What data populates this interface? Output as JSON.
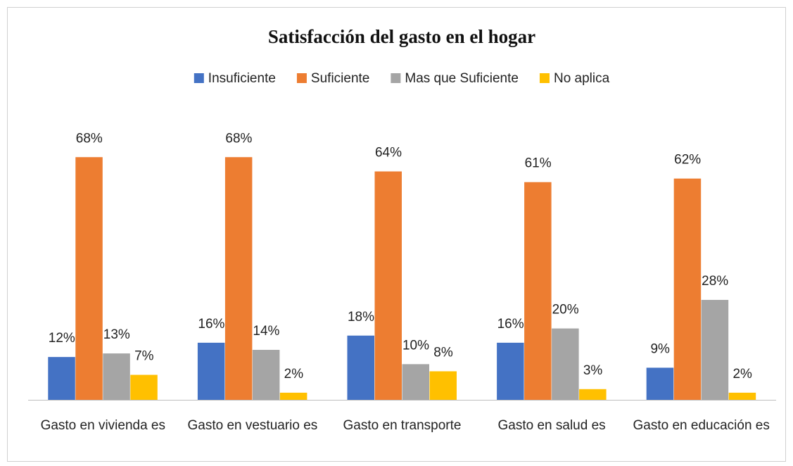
{
  "chart_data": {
    "type": "bar",
    "title": "Satisfacción del gasto en el hogar",
    "categories": [
      "Gasto en vivienda es",
      "Gasto en vestuario es",
      "Gasto en transporte",
      "Gasto en salud es",
      "Gasto en educación es"
    ],
    "series": [
      {
        "name": "Insuficiente",
        "color": "#4472c4",
        "values": [
          12,
          16,
          18,
          16,
          9
        ],
        "value_labels": [
          "12%",
          "16%",
          "18%",
          "16%",
          "9%"
        ]
      },
      {
        "name": "Suficiente",
        "color": "#ed7d31",
        "values": [
          68,
          68,
          64,
          61,
          62
        ],
        "value_labels": [
          "68%",
          "68%",
          "64%",
          "61%",
          "62%"
        ]
      },
      {
        "name": "Mas que Suficiente",
        "color": "#a5a5a5",
        "values": [
          13,
          14,
          10,
          20,
          28
        ],
        "value_labels": [
          "13%",
          "14%",
          "10%",
          "20%",
          "28%"
        ]
      },
      {
        "name": "No aplica",
        "color": "#ffc000",
        "values": [
          7,
          2,
          8,
          3,
          2
        ],
        "value_labels": [
          "7%",
          "2%",
          "8%",
          "3%",
          "2%"
        ]
      }
    ],
    "legend": "top"
  }
}
